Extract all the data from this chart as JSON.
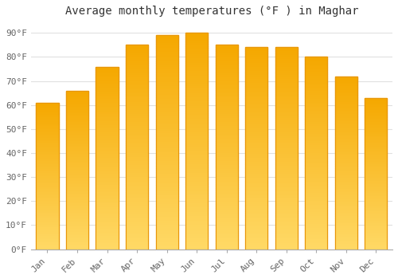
{
  "title": "Average monthly temperatures (°F ) in Maghar",
  "months": [
    "Jan",
    "Feb",
    "Mar",
    "Apr",
    "May",
    "Jun",
    "Jul",
    "Aug",
    "Sep",
    "Oct",
    "Nov",
    "Dec"
  ],
  "values": [
    61,
    66,
    76,
    85,
    89,
    90,
    85,
    84,
    84,
    80,
    72,
    63
  ],
  "bar_color_top": "#F5A800",
  "bar_color_bottom": "#FFD966",
  "background_color": "#FFFFFF",
  "plot_bg_color": "#FFFFFF",
  "ylim": [
    0,
    95
  ],
  "yticks": [
    0,
    10,
    20,
    30,
    40,
    50,
    60,
    70,
    80,
    90
  ],
  "ytick_labels": [
    "0°F",
    "10°F",
    "20°F",
    "30°F",
    "40°F",
    "50°F",
    "60°F",
    "70°F",
    "80°F",
    "90°F"
  ],
  "title_fontsize": 10,
  "tick_fontsize": 8,
  "grid_color": "#E0E0E0",
  "bar_width": 0.75
}
